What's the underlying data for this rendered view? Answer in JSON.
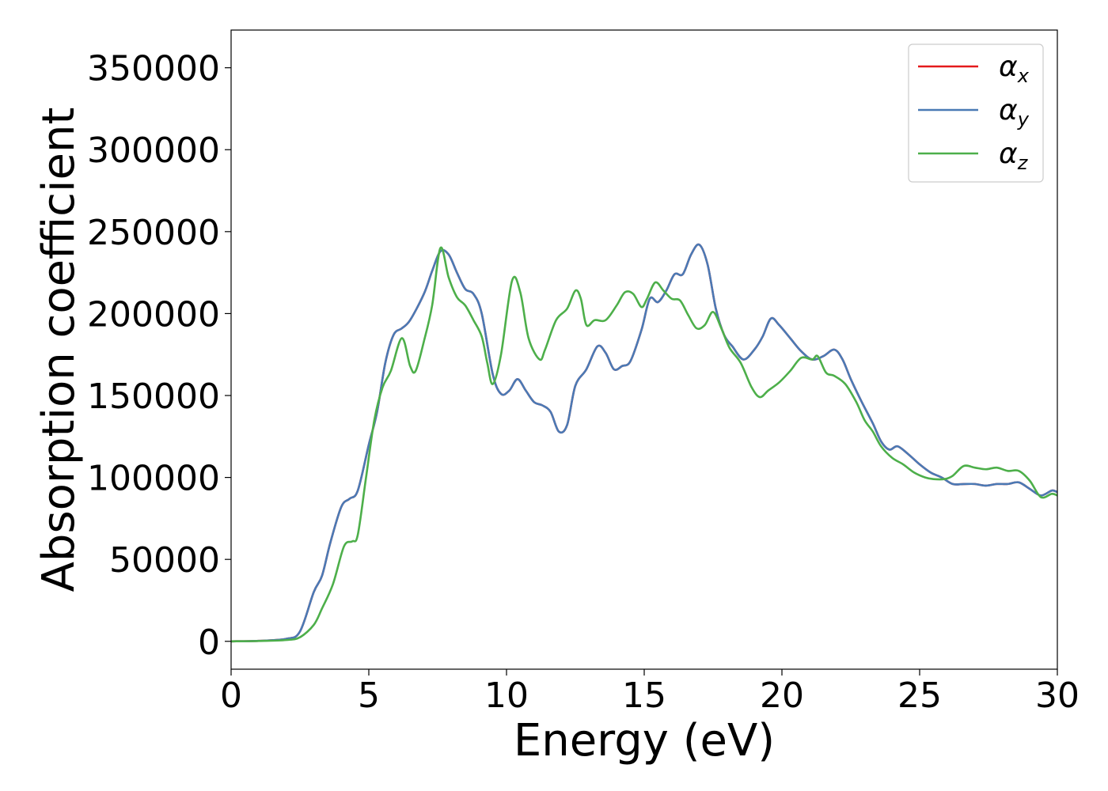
{
  "chart_data": {
    "type": "line",
    "title": "",
    "xlabel": "Energy (eV)",
    "ylabel": "Absorption coefficient",
    "xlim": [
      0,
      30
    ],
    "ylim": [
      -17000,
      373000
    ],
    "xticks": [
      0,
      5,
      10,
      15,
      20,
      25,
      30
    ],
    "xtick_labels": [
      "0",
      "5",
      "10",
      "15",
      "20",
      "25",
      "30"
    ],
    "yticks": [
      0,
      50000,
      100000,
      150000,
      200000,
      250000,
      300000,
      350000
    ],
    "ytick_labels": [
      "0",
      "50000",
      "100000",
      "150000",
      "200000",
      "250000",
      "300000",
      "350000"
    ],
    "grid": false,
    "legend_position": "top-right",
    "series": [
      {
        "name": "αx",
        "legend_base": "α",
        "legend_sub": "x",
        "color": "#e41a1c",
        "points": [
          [
            0,
            0
          ],
          [
            1,
            300
          ],
          [
            2,
            1500
          ],
          [
            2.5,
            6000
          ],
          [
            3,
            30000
          ],
          [
            3.3,
            40000
          ],
          [
            3.6,
            60000
          ],
          [
            4,
            82000
          ],
          [
            4.3,
            87000
          ],
          [
            4.6,
            92000
          ],
          [
            5,
            120000
          ],
          [
            5.3,
            140000
          ],
          [
            5.6,
            170000
          ],
          [
            5.9,
            187000
          ],
          [
            6.2,
            191000
          ],
          [
            6.5,
            196000
          ],
          [
            7,
            212000
          ],
          [
            7.3,
            226000
          ],
          [
            7.6,
            238000
          ],
          [
            7.9,
            236000
          ],
          [
            8.2,
            225000
          ],
          [
            8.5,
            215000
          ],
          [
            8.8,
            212000
          ],
          [
            9.1,
            200000
          ],
          [
            9.5,
            163000
          ],
          [
            9.8,
            151000
          ],
          [
            10.1,
            153000
          ],
          [
            10.4,
            160000
          ],
          [
            10.7,
            153000
          ],
          [
            11,
            146000
          ],
          [
            11.3,
            144000
          ],
          [
            11.6,
            140000
          ],
          [
            11.9,
            128000
          ],
          [
            12.2,
            132000
          ],
          [
            12.5,
            156000
          ],
          [
            12.9,
            166000
          ],
          [
            13.3,
            180000
          ],
          [
            13.6,
            176000
          ],
          [
            13.9,
            166000
          ],
          [
            14.2,
            168000
          ],
          [
            14.5,
            171000
          ],
          [
            14.9,
            190000
          ],
          [
            15.2,
            209000
          ],
          [
            15.5,
            207000
          ],
          [
            15.8,
            214000
          ],
          [
            16.1,
            224000
          ],
          [
            16.4,
            224000
          ],
          [
            16.7,
            236000
          ],
          [
            17,
            242000
          ],
          [
            17.3,
            230000
          ],
          [
            17.6,
            203000
          ],
          [
            17.9,
            187000
          ],
          [
            18.2,
            180000
          ],
          [
            18.6,
            172000
          ],
          [
            19,
            178000
          ],
          [
            19.3,
            186000
          ],
          [
            19.6,
            197000
          ],
          [
            19.9,
            193000
          ],
          [
            20.3,
            185000
          ],
          [
            20.7,
            177000
          ],
          [
            21.1,
            172000
          ],
          [
            21.5,
            174000
          ],
          [
            21.9,
            178000
          ],
          [
            22.2,
            172000
          ],
          [
            22.5,
            160000
          ],
          [
            22.9,
            146000
          ],
          [
            23.3,
            133000
          ],
          [
            23.6,
            122000
          ],
          [
            23.9,
            117000
          ],
          [
            24.2,
            119000
          ],
          [
            24.6,
            114000
          ],
          [
            25,
            108000
          ],
          [
            25.4,
            103000
          ],
          [
            25.8,
            100000
          ],
          [
            26.2,
            96000
          ],
          [
            26.6,
            96000
          ],
          [
            27,
            96000
          ],
          [
            27.4,
            95000
          ],
          [
            27.8,
            96000
          ],
          [
            28.2,
            96000
          ],
          [
            28.6,
            97000
          ],
          [
            29,
            93000
          ],
          [
            29.4,
            89000
          ],
          [
            29.8,
            92000
          ],
          [
            30,
            91000
          ]
        ]
      },
      {
        "name": "αy",
        "legend_base": "α",
        "legend_sub": "y",
        "color": "#4a7ab5",
        "points": [
          [
            0,
            0
          ],
          [
            1,
            300
          ],
          [
            2,
            1500
          ],
          [
            2.5,
            6000
          ],
          [
            3,
            30000
          ],
          [
            3.3,
            40000
          ],
          [
            3.6,
            60000
          ],
          [
            4,
            82000
          ],
          [
            4.3,
            87000
          ],
          [
            4.6,
            92000
          ],
          [
            5,
            120000
          ],
          [
            5.3,
            140000
          ],
          [
            5.6,
            170000
          ],
          [
            5.9,
            187000
          ],
          [
            6.2,
            191000
          ],
          [
            6.5,
            196000
          ],
          [
            7,
            212000
          ],
          [
            7.3,
            226000
          ],
          [
            7.6,
            238000
          ],
          [
            7.9,
            236000
          ],
          [
            8.2,
            225000
          ],
          [
            8.5,
            215000
          ],
          [
            8.8,
            212000
          ],
          [
            9.1,
            200000
          ],
          [
            9.5,
            163000
          ],
          [
            9.8,
            151000
          ],
          [
            10.1,
            153000
          ],
          [
            10.4,
            160000
          ],
          [
            10.7,
            153000
          ],
          [
            11,
            146000
          ],
          [
            11.3,
            144000
          ],
          [
            11.6,
            140000
          ],
          [
            11.9,
            128000
          ],
          [
            12.2,
            132000
          ],
          [
            12.5,
            156000
          ],
          [
            12.9,
            166000
          ],
          [
            13.3,
            180000
          ],
          [
            13.6,
            176000
          ],
          [
            13.9,
            166000
          ],
          [
            14.2,
            168000
          ],
          [
            14.5,
            171000
          ],
          [
            14.9,
            190000
          ],
          [
            15.2,
            209000
          ],
          [
            15.5,
            207000
          ],
          [
            15.8,
            214000
          ],
          [
            16.1,
            224000
          ],
          [
            16.4,
            224000
          ],
          [
            16.7,
            236000
          ],
          [
            17,
            242000
          ],
          [
            17.3,
            230000
          ],
          [
            17.6,
            203000
          ],
          [
            17.9,
            187000
          ],
          [
            18.2,
            180000
          ],
          [
            18.6,
            172000
          ],
          [
            19,
            178000
          ],
          [
            19.3,
            186000
          ],
          [
            19.6,
            197000
          ],
          [
            19.9,
            193000
          ],
          [
            20.3,
            185000
          ],
          [
            20.7,
            177000
          ],
          [
            21.1,
            172000
          ],
          [
            21.5,
            174000
          ],
          [
            21.9,
            178000
          ],
          [
            22.2,
            172000
          ],
          [
            22.5,
            160000
          ],
          [
            22.9,
            146000
          ],
          [
            23.3,
            133000
          ],
          [
            23.6,
            122000
          ],
          [
            23.9,
            117000
          ],
          [
            24.2,
            119000
          ],
          [
            24.6,
            114000
          ],
          [
            25,
            108000
          ],
          [
            25.4,
            103000
          ],
          [
            25.8,
            100000
          ],
          [
            26.2,
            96000
          ],
          [
            26.6,
            96000
          ],
          [
            27,
            96000
          ],
          [
            27.4,
            95000
          ],
          [
            27.8,
            96000
          ],
          [
            28.2,
            96000
          ],
          [
            28.6,
            97000
          ],
          [
            29,
            93000
          ],
          [
            29.4,
            89000
          ],
          [
            29.8,
            92000
          ],
          [
            30,
            91000
          ]
        ]
      },
      {
        "name": "αz",
        "legend_base": "α",
        "legend_sub": "z",
        "color": "#4daf4a",
        "points": [
          [
            0,
            0
          ],
          [
            1,
            200
          ],
          [
            2,
            800
          ],
          [
            2.5,
            2500
          ],
          [
            3,
            10000
          ],
          [
            3.3,
            20000
          ],
          [
            3.7,
            35000
          ],
          [
            4.1,
            58000
          ],
          [
            4.4,
            61000
          ],
          [
            4.6,
            65000
          ],
          [
            4.9,
            100000
          ],
          [
            5.2,
            135000
          ],
          [
            5.5,
            155000
          ],
          [
            5.8,
            165000
          ],
          [
            6.2,
            185000
          ],
          [
            6.5,
            168000
          ],
          [
            6.7,
            165000
          ],
          [
            7,
            183000
          ],
          [
            7.3,
            205000
          ],
          [
            7.6,
            240000
          ],
          [
            7.9,
            222000
          ],
          [
            8.2,
            210000
          ],
          [
            8.5,
            205000
          ],
          [
            8.8,
            196000
          ],
          [
            9.1,
            186000
          ],
          [
            9.3,
            170000
          ],
          [
            9.5,
            157000
          ],
          [
            9.8,
            175000
          ],
          [
            10.2,
            220000
          ],
          [
            10.5,
            213000
          ],
          [
            10.8,
            185000
          ],
          [
            11.2,
            172000
          ],
          [
            11.4,
            178000
          ],
          [
            11.8,
            196000
          ],
          [
            12.2,
            203000
          ],
          [
            12.5,
            214000
          ],
          [
            12.7,
            209000
          ],
          [
            12.9,
            193000
          ],
          [
            13.2,
            196000
          ],
          [
            13.6,
            196000
          ],
          [
            14,
            205000
          ],
          [
            14.3,
            213000
          ],
          [
            14.6,
            212000
          ],
          [
            14.9,
            204000
          ],
          [
            15.1,
            209000
          ],
          [
            15.4,
            219000
          ],
          [
            15.7,
            214000
          ],
          [
            16,
            209000
          ],
          [
            16.3,
            208000
          ],
          [
            16.6,
            199000
          ],
          [
            16.9,
            191000
          ],
          [
            17.2,
            193000
          ],
          [
            17.5,
            201000
          ],
          [
            17.8,
            191000
          ],
          [
            18.1,
            179000
          ],
          [
            18.5,
            170000
          ],
          [
            18.9,
            155000
          ],
          [
            19.2,
            149000
          ],
          [
            19.5,
            153000
          ],
          [
            19.9,
            158000
          ],
          [
            20.3,
            165000
          ],
          [
            20.7,
            173000
          ],
          [
            21.1,
            172000
          ],
          [
            21.3,
            174000
          ],
          [
            21.6,
            164000
          ],
          [
            21.9,
            162000
          ],
          [
            22.3,
            157000
          ],
          [
            22.7,
            146000
          ],
          [
            23,
            135000
          ],
          [
            23.3,
            128000
          ],
          [
            23.6,
            119000
          ],
          [
            24,
            112000
          ],
          [
            24.4,
            108000
          ],
          [
            24.8,
            103000
          ],
          [
            25.2,
            100000
          ],
          [
            25.5,
            99000
          ],
          [
            25.9,
            99000
          ],
          [
            26.2,
            101000
          ],
          [
            26.6,
            107000
          ],
          [
            27,
            106000
          ],
          [
            27.4,
            105000
          ],
          [
            27.8,
            106000
          ],
          [
            28.2,
            104000
          ],
          [
            28.6,
            104000
          ],
          [
            29,
            98000
          ],
          [
            29.4,
            88000
          ],
          [
            29.8,
            90000
          ],
          [
            30,
            89000
          ]
        ]
      }
    ]
  }
}
